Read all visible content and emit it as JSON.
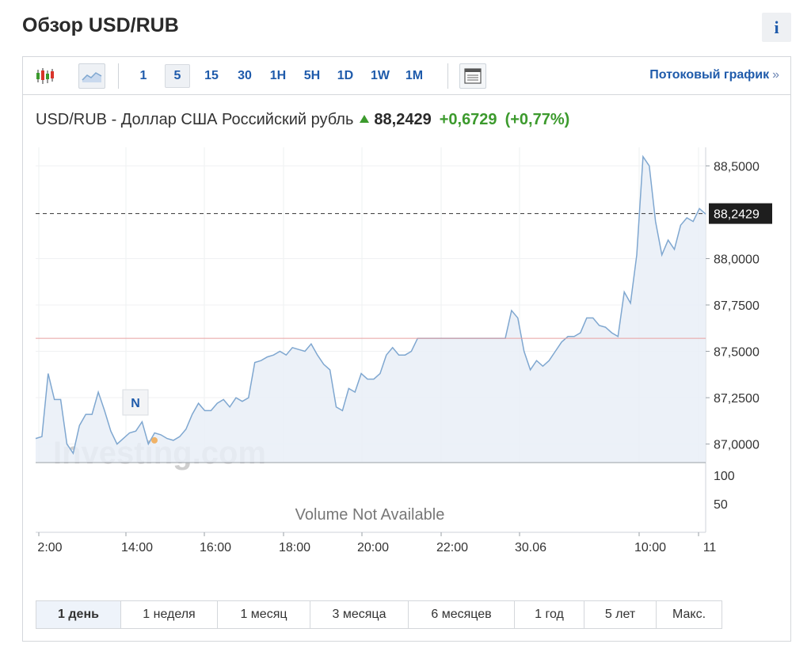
{
  "page": {
    "title": "Обзор USD/RUB",
    "info_label": "i"
  },
  "toolbar": {
    "icons": [
      "candlestick-icon",
      "area-chart-icon",
      "table-view-icon"
    ],
    "timeframes": [
      "1",
      "5",
      "15",
      "30",
      "1H",
      "5H",
      "1D",
      "1W",
      "1M"
    ],
    "active_timeframe": "5",
    "stream_link": "Потоковый график",
    "stream_arrows": "»"
  },
  "quote": {
    "name": "USD/RUB - Доллар США Российский рубль",
    "price": "88,2429",
    "change": "+0,6729",
    "change_pct": "(+0,77%)"
  },
  "colors": {
    "accent": "#1f5bab",
    "positive": "#3c9a2d",
    "line": "#7fa7d0",
    "area": "#e9eff7",
    "prev_close": "#e8a0a0"
  },
  "chart_data": {
    "type": "area",
    "x_tick_labels": [
      "2:00",
      "14:00",
      "16:00",
      "18:00",
      "20:00",
      "22:00",
      "30.06",
      "10:00",
      "11"
    ],
    "y_tick_labels": [
      "88,5000",
      "88,0000",
      "87,7500",
      "87,5000",
      "87,2500",
      "87,0000"
    ],
    "ylim": [
      86.9,
      88.6
    ],
    "current_price_label": "88,2429",
    "current_price": 88.2429,
    "previous_close": 87.57,
    "series": [
      {
        "values": [
          87.03,
          87.04,
          87.38,
          87.24,
          87.24,
          87.0,
          86.95,
          87.1,
          87.16,
          87.16,
          87.28,
          87.18,
          87.07,
          87.0,
          87.03,
          87.06,
          87.07,
          87.12,
          87.0,
          87.06,
          87.05,
          87.03,
          87.02,
          87.04,
          87.08,
          87.16,
          87.22,
          87.18,
          87.18,
          87.22,
          87.24,
          87.2,
          87.25,
          87.23,
          87.25,
          87.44,
          87.45,
          87.47,
          87.48,
          87.5,
          87.48,
          87.52,
          87.51,
          87.5,
          87.54,
          87.48,
          87.43,
          87.4,
          87.2,
          87.18,
          87.3,
          87.28,
          87.38,
          87.35,
          87.35,
          87.38,
          87.48,
          87.52,
          87.48,
          87.48,
          87.5,
          87.57,
          87.57,
          87.57,
          87.57,
          87.57,
          87.57,
          87.57,
          87.57,
          87.57,
          87.57,
          87.57,
          87.57,
          87.57,
          87.57,
          87.57,
          87.72,
          87.68,
          87.5,
          87.4,
          87.45,
          87.42,
          87.45,
          87.5,
          87.55,
          87.58,
          87.58,
          87.6,
          87.68,
          87.68,
          87.64,
          87.63,
          87.6,
          87.58,
          87.82,
          87.76,
          88.02,
          88.55,
          88.5,
          88.2,
          88.02,
          88.1,
          88.05,
          88.18,
          88.22,
          88.2,
          88.27,
          88.24
        ]
      }
    ],
    "volume": {
      "ticks": [
        "100",
        "50"
      ],
      "message": "Volume Not Available"
    },
    "annotation": "N",
    "watermark": "Investing.com",
    "grid": true
  },
  "range_tabs": [
    "1 день",
    "1 неделя",
    "1 месяц",
    "3 месяца",
    "6 месяцев",
    "1 год",
    "5 лет",
    "Макс."
  ],
  "active_range": "1 день"
}
